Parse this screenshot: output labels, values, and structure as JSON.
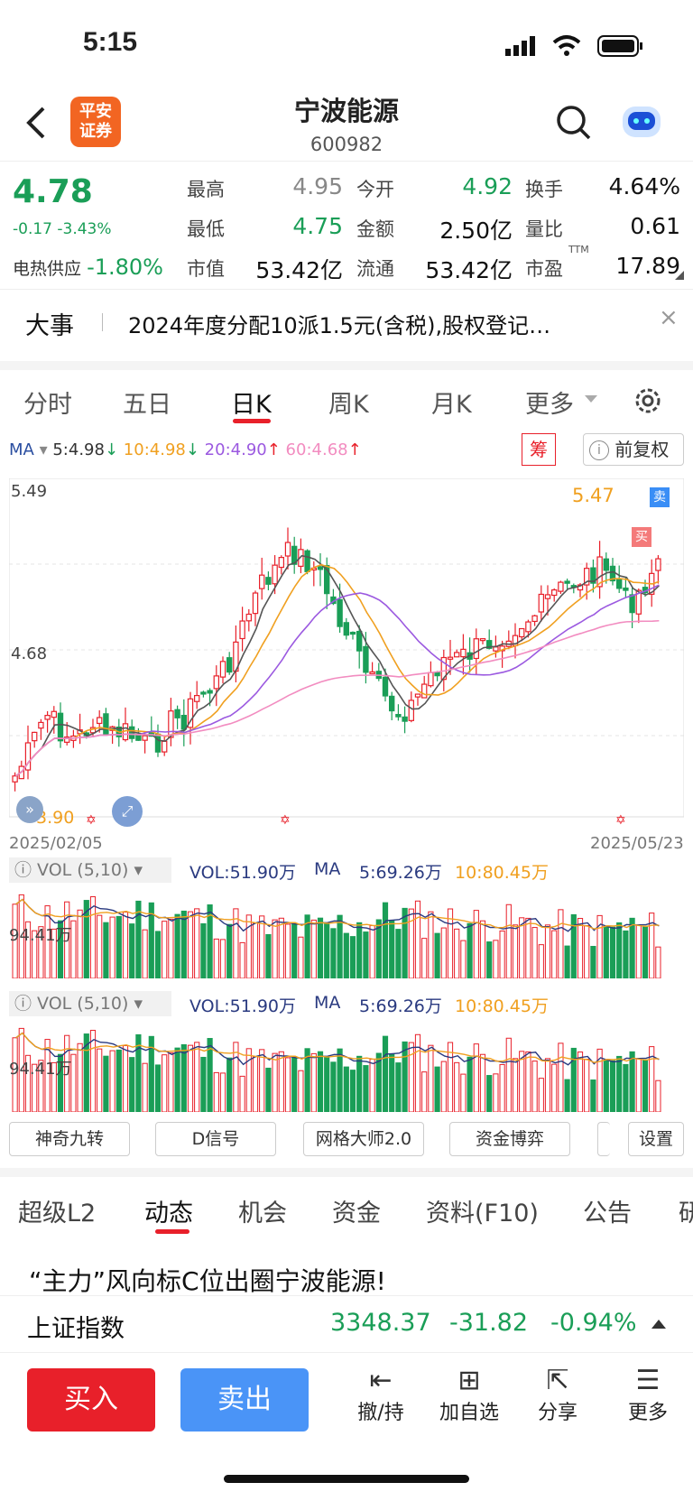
{
  "status": {
    "time": "5:15"
  },
  "header": {
    "title": "宁波能源",
    "code": "600982",
    "logo": "平安\n证券"
  },
  "quote": {
    "price": "4.78",
    "change": "-0.17 -3.43%",
    "sector_label": "电热供应",
    "sector_change": "-1.80%",
    "row1": [
      {
        "l": "最高",
        "v": "4.95"
      },
      {
        "l": "今开",
        "v": "4.92"
      },
      {
        "l": "换手",
        "v": "4.64%"
      }
    ],
    "row2": [
      {
        "l": "最低",
        "v": "4.75"
      },
      {
        "l": "金额",
        "v": "2.50亿"
      },
      {
        "l": "量比",
        "v": "0.61"
      }
    ],
    "row3": [
      {
        "l": "市值",
        "v": "53.42亿"
      },
      {
        "l": "流通",
        "v": "53.42亿"
      },
      {
        "l": "市盈",
        "v": "17.89"
      }
    ],
    "ttm": "TTM"
  },
  "news": {
    "tag": "大事",
    "text": "2024年度分配10派1.5元(含税),股权登记…"
  },
  "tabs": [
    "分时",
    "五日",
    "日K",
    "周K",
    "月K",
    "更多"
  ],
  "legend": {
    "ma": "MA",
    "ma5": "5:4.98",
    "ma10": "10:4.98",
    "ma20": "20:4.90",
    "ma60": "60:4.68",
    "chou": "筹",
    "fuquan": "前复权"
  },
  "chart_labels": {
    "high": "5.49",
    "mid": "4.68",
    "low": "3.90",
    "start": "2025/02/05",
    "end": "2025/05/23",
    "peak": "5.47",
    "sell": "卖",
    "buy": "买"
  },
  "vol": {
    "label": "VOL (5,10)",
    "vol": "VOL:51.90万",
    "ma": "MA",
    "ma5": "5:69.26万",
    "ma10": "10:80.45万",
    "level": "94.41万"
  },
  "buttons": [
    "神奇九转",
    "D信号",
    "网格大师2.0",
    "资金博弈",
    "设置"
  ],
  "subtabs": [
    "超级L2",
    "动态",
    "机会",
    "资金",
    "资料(F10)",
    "公告"
  ],
  "headline": "“主力”风向标C位出圈宁波能源!",
  "index": {
    "name": "上证指数",
    "value": "3348.37",
    "change": "-31.82",
    "pct": "-0.94%"
  },
  "actions": {
    "buy": "买入",
    "sell": "卖出",
    "tools": [
      "撤/持",
      "加自选",
      "分享",
      "更多"
    ]
  },
  "colors": {
    "up": "#e8202a",
    "down": "#1a9e57",
    "blue": "#3a8ef6"
  }
}
